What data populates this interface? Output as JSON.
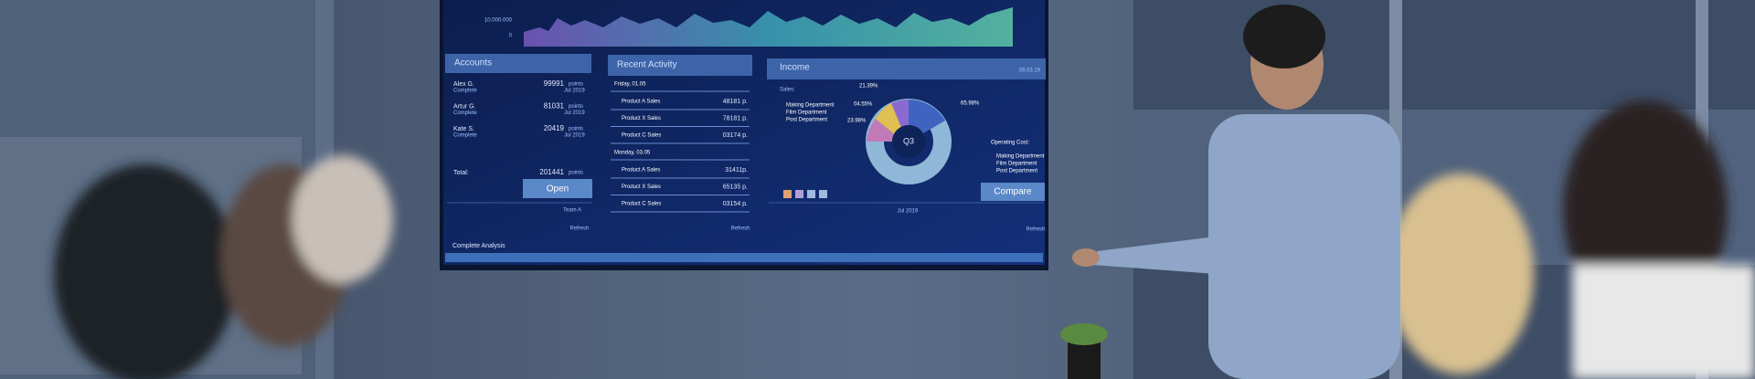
{
  "screen": {
    "axis_labels": [
      "10.000.000",
      "0"
    ],
    "accounts": {
      "title": "Accounts",
      "rows": [
        {
          "name": "Alex G.",
          "status": "Complete",
          "points": "99991",
          "unit": "points",
          "date": "Jul 2019"
        },
        {
          "name": "Artur G.",
          "status": "Complete",
          "points": "81031",
          "unit": "points",
          "date": "Jul 2019"
        },
        {
          "name": "Kate S.",
          "status": "Complete",
          "points": "20419",
          "unit": "points",
          "date": "Jul 2019"
        }
      ],
      "total_label": "Total:",
      "total": "201441",
      "total_unit": "points",
      "button": "Open",
      "team": "Team A",
      "refresh": "Refresh",
      "footer": "Complete Analysis"
    },
    "recent": {
      "title": "Recent Activity",
      "groups": [
        {
          "day": "Friday, 01.05",
          "items": [
            {
              "label": "Product A Sales",
              "value": "48181 p."
            },
            {
              "label": "Product X Sales",
              "value": "78181 p."
            },
            {
              "label": "Product C Sales",
              "value": "03174 p."
            }
          ]
        },
        {
          "day": "Monday, 03.05",
          "items": [
            {
              "label": "Product A Sales",
              "value": "31411p."
            },
            {
              "label": "Product X Sales",
              "value": "65135 p."
            },
            {
              "label": "Product C Sales",
              "value": "03154 p."
            }
          ]
        }
      ],
      "refresh": "Refresh"
    },
    "income": {
      "title": "Income",
      "date": "09.03.19",
      "sales_label": "Sales:",
      "departments": [
        "Making Department",
        "Film Department",
        "Post Department"
      ],
      "percents": [
        "21.39%",
        "04.55%",
        "23.98%",
        "65.98%"
      ],
      "center": "Q3",
      "cost_label": "Operating Cost:",
      "cost_departments": [
        "Making Department",
        "Film Department",
        "Post Department"
      ],
      "button": "Compare",
      "month": "Jul 2019",
      "refresh": "Refresh"
    }
  }
}
